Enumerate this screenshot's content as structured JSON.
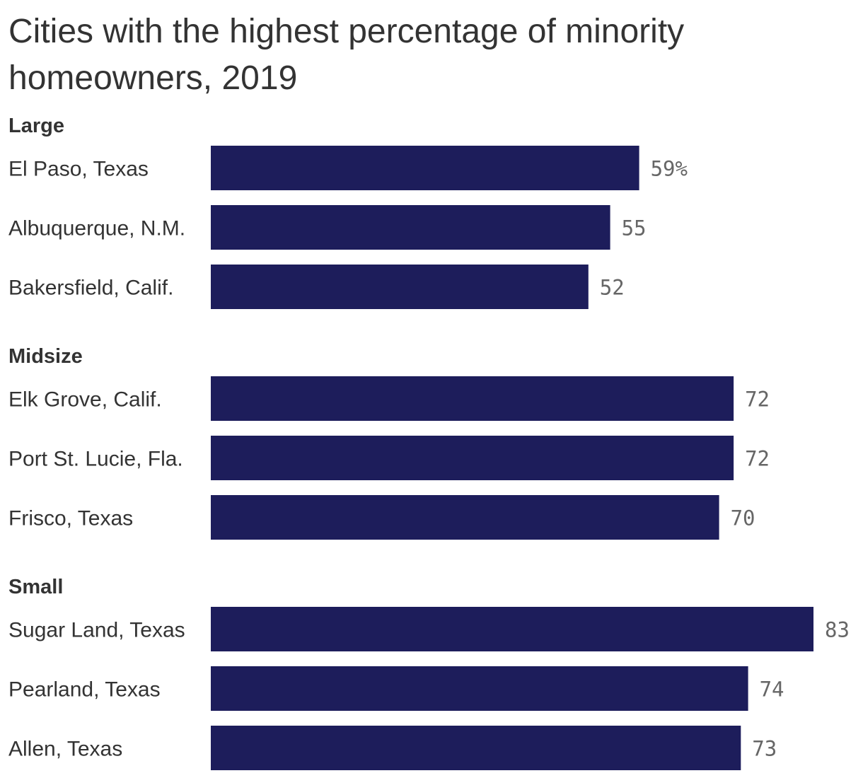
{
  "colors": {
    "bar": "#1d1d5b",
    "text": "#333333",
    "value_text": "#666666",
    "background": "#ffffff"
  },
  "chart_data": {
    "type": "bar",
    "orientation": "horizontal",
    "title": "Cities with the highest percentage of minority homeowners, 2019",
    "xlim": [
      0,
      83
    ],
    "grid": false,
    "legend": "none",
    "value_suffix_first": "%",
    "groups": [
      {
        "name": "Large",
        "categories": [
          "El Paso, Texas",
          "Albuquerque, N.M.",
          "Bakersfield, Calif."
        ],
        "values": [
          59,
          55,
          52
        ],
        "value_labels": [
          "59%",
          "55",
          "52"
        ]
      },
      {
        "name": "Midsize",
        "categories": [
          "Elk Grove, Calif.",
          "Port St. Lucie, Fla.",
          "Frisco, Texas"
        ],
        "values": [
          72,
          72,
          70
        ],
        "value_labels": [
          "72",
          "72",
          "70"
        ]
      },
      {
        "name": "Small",
        "categories": [
          "Sugar Land, Texas",
          "Pearland, Texas",
          "Allen, Texas"
        ],
        "values": [
          83,
          74,
          73
        ],
        "value_labels": [
          "83",
          "74",
          "73"
        ]
      }
    ]
  }
}
